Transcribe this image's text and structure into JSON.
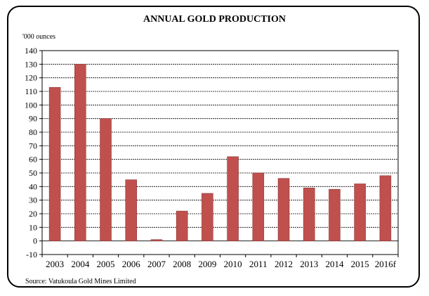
{
  "chart_data": {
    "type": "bar",
    "title": "ANNUAL GOLD PRODUCTION",
    "unit_label": "'000 ounces",
    "source": "Source:  Vatukoula Gold Mines Limited",
    "categories": [
      "2003",
      "2004",
      "2005",
      "2006",
      "2007",
      "2008",
      "2009",
      "2010",
      "2011",
      "2012",
      "2013",
      "2014",
      "2015",
      "2016f"
    ],
    "values": [
      113,
      130,
      90,
      45,
      1,
      22,
      35,
      62,
      50,
      46,
      39,
      38,
      42,
      48
    ],
    "ylim": [
      -10,
      140
    ],
    "yticks": [
      -10,
      0,
      10,
      20,
      30,
      40,
      50,
      60,
      70,
      80,
      90,
      100,
      110,
      120,
      130,
      140
    ],
    "grid": true,
    "bar_color": "#c0504d"
  }
}
